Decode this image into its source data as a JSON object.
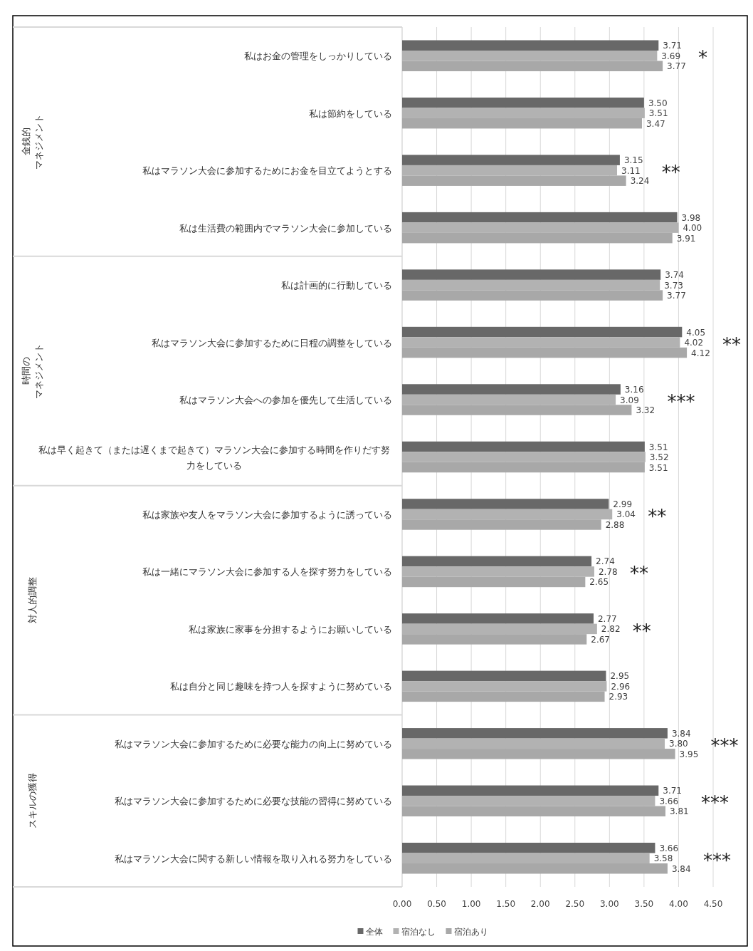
{
  "chart_data": {
    "type": "bar",
    "orientation": "horizontal",
    "grid": "x",
    "legend": "bottom",
    "categories": [
      "私はお金の管理をしっかりしている",
      "私は節約をしている",
      "私はマラソン大会に参加するためにお金を目立てようとする",
      "私は生活費の範囲内でマラソン大会に参加している",
      "私は計画的に行動している",
      "私はマラソン大会に参加するために日程の調整をしている",
      "私はマラソン大会への参加を優先して生活している",
      "私は早く起きて（または遅くまで起きて）マラソン大会に参加する時間を作りだす努力をしている",
      "私は家族や友人をマラソン大会に参加するように誘っている",
      "私は一緒にマラソン大会に参加する人を探す努力をしている",
      "私は家族に家事を分担するようにお願いしている",
      "私は自分と同じ趣味を持つ人を探すように努めている",
      "私はマラソン大会に参加するために必要な能力の向上に努めている",
      "私はマラソン大会に参加するために必要な技能の習得に努めている",
      "私はマラソン大会に関する新しい情報を取り入れる努力をしている"
    ],
    "series": [
      {
        "name": "全体",
        "color": "#686868",
        "values": [
          3.71,
          3.5,
          3.15,
          3.98,
          3.74,
          4.05,
          3.16,
          3.51,
          2.99,
          2.74,
          2.77,
          2.95,
          3.84,
          3.71,
          3.66
        ],
        "value_labels": [
          "3.71",
          "3.50",
          "3.15",
          "3.98",
          "3.74",
          "4.05",
          "3.16",
          "3.51",
          "2.99",
          "2.74",
          "2.77",
          "2.95",
          "3.84",
          "3.71",
          "3.66"
        ]
      },
      {
        "name": "宿泊なし",
        "color": "#b2b2b2",
        "values": [
          3.69,
          3.51,
          3.11,
          4.0,
          3.73,
          4.02,
          3.09,
          3.52,
          3.04,
          2.78,
          2.82,
          2.96,
          3.8,
          3.66,
          3.58
        ],
        "value_labels": [
          "3.69",
          "3.51",
          "3.11",
          "4.00",
          "3.73",
          "4.02",
          "3.09",
          "3.52",
          "3.04",
          "2.78",
          "2.82",
          "2.96",
          "3.80",
          "3.66",
          "3.58"
        ]
      },
      {
        "name": "宿泊あり",
        "color": "#a8a8a8",
        "values": [
          3.77,
          3.47,
          3.24,
          3.91,
          3.77,
          4.12,
          3.32,
          3.51,
          2.88,
          2.65,
          2.67,
          2.93,
          3.95,
          3.81,
          3.84
        ],
        "value_labels": [
          "3.77",
          "3.47",
          "3.24",
          "3.91",
          "3.77",
          "4.12",
          "3.32",
          "3.51",
          "2.88",
          "2.65",
          "2.67",
          "2.93",
          "3.95",
          "3.81",
          "3.84"
        ]
      }
    ],
    "xlim": [
      0,
      4.5
    ],
    "xticks": [
      {
        "value": 0,
        "label": "0.00"
      },
      {
        "value": 0.5,
        "label": "0.50"
      },
      {
        "value": 1,
        "label": "1.00"
      },
      {
        "value": 1.5,
        "label": "1.50"
      },
      {
        "value": 2,
        "label": "2.00"
      },
      {
        "value": 2.5,
        "label": "2.50"
      },
      {
        "value": 3,
        "label": "3.00"
      },
      {
        "value": 3.5,
        "label": "3.50"
      },
      {
        "value": 4,
        "label": "4.00"
      },
      {
        "value": 4.5,
        "label": "4.50"
      }
    ],
    "annotations": [
      "金銭的マネジメント",
      "時間のマネジメント",
      "対人的調整",
      "スキルの獲得",
      "*",
      "**",
      "**",
      "***",
      "**",
      "**",
      "**",
      "***",
      "***",
      "***"
    ]
  }
}
